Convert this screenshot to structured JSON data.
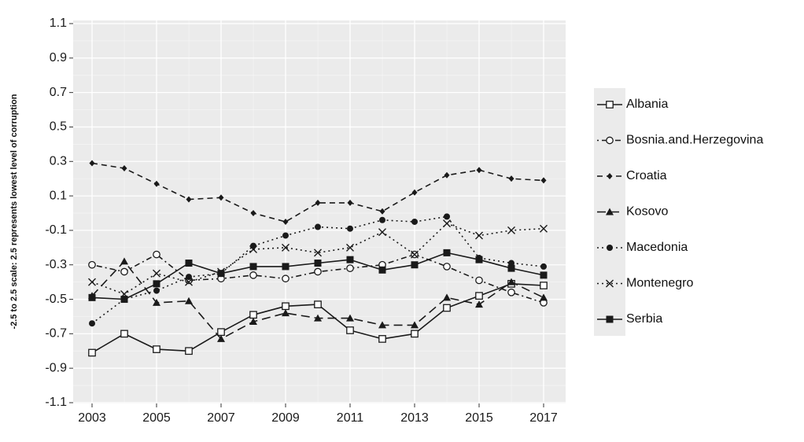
{
  "chart_data": {
    "type": "line",
    "title": "",
    "xlabel": "",
    "ylabel": "-2.5 to 2.5 scale: 2.5 represents lowest level of corruption",
    "x": [
      2003,
      2004,
      2005,
      2006,
      2007,
      2008,
      2009,
      2010,
      2011,
      2012,
      2013,
      2014,
      2015,
      2016,
      2017
    ],
    "xticks": [
      "2003",
      "2005",
      "2007",
      "2009",
      "2011",
      "2013",
      "2015",
      "2017"
    ],
    "yticks": [
      "1.1",
      "0.9",
      "0.7",
      "0.5",
      "0.3",
      "0.1",
      "-0.1",
      "-0.3",
      "-0.5",
      "-0.7",
      "-0.9",
      "-1.1"
    ],
    "xlim": [
      2002.5,
      2017.5
    ],
    "ylim": [
      -1.1,
      1.1
    ],
    "grid": true,
    "legend_position": "right",
    "series": [
      {
        "name": "Albania",
        "marker": "open-square",
        "dash": "solid",
        "values": [
          -0.81,
          -0.7,
          -0.79,
          -0.8,
          -0.69,
          -0.59,
          -0.54,
          -0.53,
          -0.68,
          -0.73,
          -0.7,
          -0.55,
          -0.48,
          -0.41,
          -0.42
        ]
      },
      {
        "name": "Bosnia.and.Herzegovina",
        "marker": "open-circle",
        "dash": "dotdash",
        "values": [
          -0.3,
          -0.34,
          -0.24,
          -0.39,
          -0.38,
          -0.36,
          -0.38,
          -0.34,
          -0.32,
          -0.3,
          -0.24,
          -0.31,
          -0.39,
          -0.46,
          -0.52
        ]
      },
      {
        "name": "Croatia",
        "marker": "diamond",
        "dash": "dashed",
        "values": [
          0.29,
          0.26,
          0.17,
          0.08,
          0.09,
          0.0,
          -0.05,
          0.06,
          0.06,
          0.01,
          0.12,
          0.22,
          0.25,
          0.2,
          0.19
        ]
      },
      {
        "name": "Kosovo",
        "marker": "triangle",
        "dash": "longdash",
        "values": [
          -0.48,
          -0.28,
          -0.52,
          -0.51,
          -0.73,
          -0.63,
          -0.58,
          -0.61,
          -0.61,
          -0.65,
          -0.65,
          -0.49,
          -0.53,
          -0.4,
          -0.49
        ]
      },
      {
        "name": "Macedonia",
        "marker": "circle",
        "dash": "dotted",
        "values": [
          -0.64,
          -0.5,
          -0.45,
          -0.37,
          -0.35,
          -0.19,
          -0.13,
          -0.08,
          -0.09,
          -0.04,
          -0.05,
          -0.02,
          -0.26,
          -0.29,
          -0.31
        ]
      },
      {
        "name": "Montenegro",
        "marker": "x",
        "dash": "dotted",
        "values": [
          -0.4,
          -0.47,
          -0.35,
          -0.4,
          -0.34,
          -0.21,
          -0.2,
          -0.23,
          -0.2,
          -0.11,
          -0.24,
          -0.06,
          -0.13,
          -0.1,
          -0.09
        ]
      },
      {
        "name": "Serbia",
        "marker": "square",
        "dash": "solid",
        "values": [
          -0.49,
          -0.5,
          -0.41,
          -0.29,
          -0.35,
          -0.31,
          -0.31,
          -0.29,
          -0.27,
          -0.33,
          -0.3,
          -0.23,
          -0.27,
          -0.32,
          -0.36
        ]
      }
    ]
  }
}
